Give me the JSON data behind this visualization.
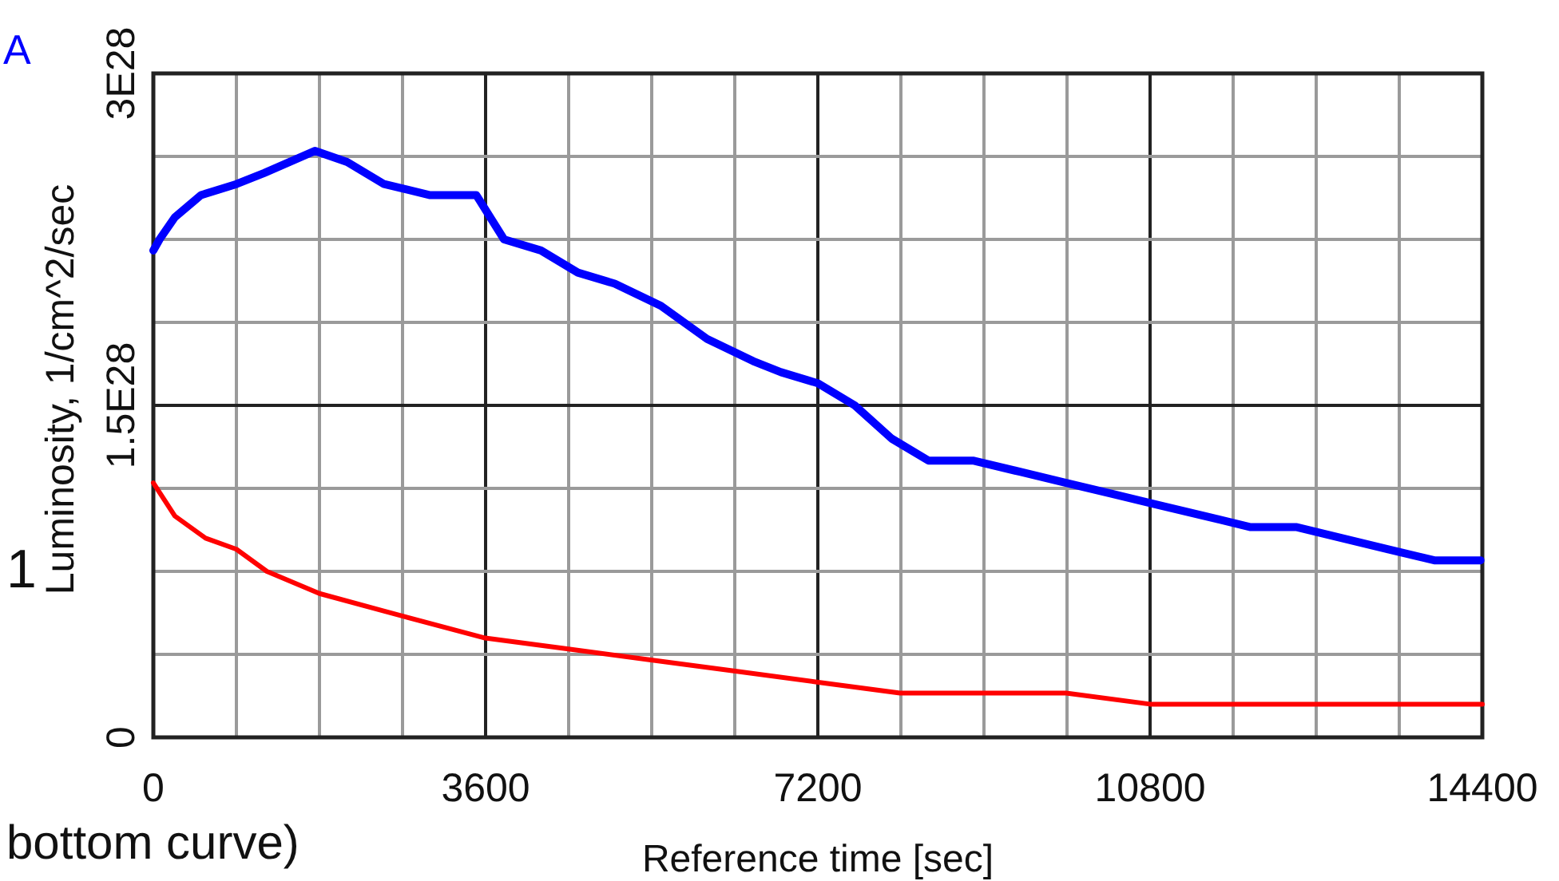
{
  "chart_data": {
    "type": "line",
    "xlabel": "Reference time [sec]",
    "ylabel": "Luminosity, 1/cm^2/sec",
    "annotations": [
      "A",
      "1",
      "bottom curve)"
    ],
    "xlim": [
      0,
      14400
    ],
    "ylim": [
      0,
      3e+28
    ],
    "xticks": [
      0,
      {
        "value": 900,
        "label": null
      },
      {
        "value": 1800,
        "label": null
      },
      {
        "value": 2700,
        "label": null
      },
      3600,
      {
        "value": 4500,
        "label": null
      },
      {
        "value": 5400,
        "label": null
      },
      {
        "value": 6300,
        "label": null
      },
      7200,
      {
        "value": 8100,
        "label": null
      },
      {
        "value": 9000,
        "label": null
      },
      {
        "value": 9900,
        "label": null
      },
      10800,
      {
        "value": 11700,
        "label": null
      },
      {
        "value": 12600,
        "label": null
      },
      {
        "value": 13500,
        "label": null
      },
      14400
    ],
    "yticks": [
      0,
      {
        "value": 3.75e+27,
        "label": null
      },
      {
        "value": 7.5e+27,
        "label": null
      },
      {
        "value": 1.125e+28,
        "label": null
      },
      {
        "value": 1.5e+28,
        "label": "1.5E28"
      },
      {
        "value": 1.875e+28,
        "label": null
      },
      {
        "value": 2.25e+28,
        "label": null
      },
      {
        "value": 2.625e+28,
        "label": null
      },
      {
        "value": 3e+28,
        "label": "3E28"
      }
    ],
    "grid": true,
    "line_style": "solid",
    "series": [
      {
        "color": "#0000ff",
        "x": [
          0,
          67,
          233,
          516,
          900,
          1200,
          1750,
          2100,
          2500,
          3000,
          3500,
          3800,
          4200,
          4600,
          5000,
          5500,
          6000,
          6500,
          6800,
          7200,
          7600,
          8000,
          8400,
          8890,
          9390,
          9890,
          10390,
          10890,
          11390,
          11890,
          12390,
          12880,
          13380,
          13880,
          14380
        ],
        "values": [
          2.2e+28,
          2.25e+28,
          2.35e+28,
          2.45e+28,
          2.5e+28,
          2.55e+28,
          2.65e+28,
          2.6e+28,
          2.5e+28,
          2.45e+28,
          2.45e+28,
          2.25e+28,
          2.2e+28,
          2.1e+28,
          2.05e+28,
          1.95e+28,
          1.8e+28,
          1.7e+28,
          1.65e+28,
          1.6e+28,
          1.5e+28,
          1.35e+28,
          1.25e+28,
          1.25e+28,
          1.2e+28,
          1.15e+28,
          1.1e+28,
          1.05e+28,
          1e+28,
          9.5e+27,
          9.5e+27,
          9e+27,
          8.5e+27,
          8e+27,
          8e+27
        ]
      },
      {
        "color": "#ff0000",
        "x": [
          0,
          233,
          566,
          900,
          1230,
          1800,
          2680,
          3580,
          4480,
          5390,
          6290,
          7190,
          8090,
          8990,
          9890,
          10800,
          11720,
          12600,
          13480,
          14400
        ],
        "values": [
          1.15e+28,
          1e+28,
          9e+27,
          8.5e+27,
          7.5e+27,
          6.5e+27,
          5.5e+27,
          4.5e+27,
          4e+27,
          3.5e+27,
          3e+27,
          2.5e+27,
          2e+27,
          2e+27,
          2e+27,
          1.5e+27,
          1.5e+27,
          1.5e+27,
          1.5e+27,
          1.5e+27
        ]
      }
    ]
  }
}
